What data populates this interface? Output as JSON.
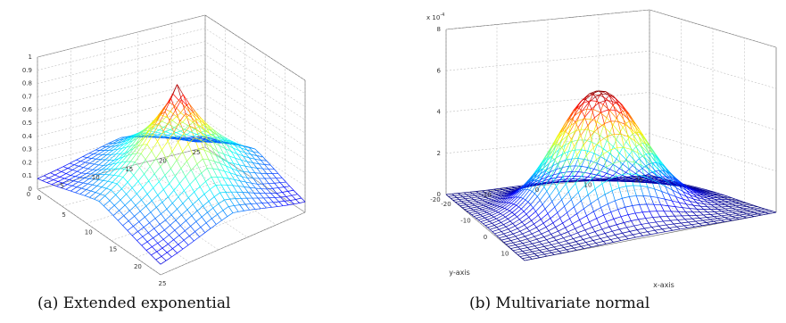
{
  "chart_data": [
    {
      "type": "surface",
      "caption": "(a) Extended exponential",
      "title": "",
      "xlabel": "",
      "ylabel": "",
      "zlabel": "",
      "x_range": [
        0,
        25
      ],
      "y_range": [
        0,
        25
      ],
      "zlim": [
        0,
        1
      ],
      "x_ticks": [
        0,
        5,
        10,
        15,
        20,
        25
      ],
      "y_ticks": [
        0,
        5,
        10,
        15,
        20,
        25
      ],
      "z_ticks": [
        0,
        0.1,
        0.2,
        0.3,
        0.4,
        0.5,
        0.6,
        0.7,
        0.8,
        0.9,
        1
      ],
      "x_tick_labels": [
        "0",
        "5",
        "10",
        "15",
        "20",
        "25"
      ],
      "y_tick_labels": [
        "0",
        "5",
        "10",
        "15",
        "20",
        "25"
      ],
      "z_tick_labels": [
        "0",
        "0.1",
        "0.2",
        "0.3",
        "0.4",
        "0.5",
        "0.6",
        "0.7",
        "0.8",
        "0.9",
        "1"
      ],
      "peak": {
        "x": 12.5,
        "y": 12.5,
        "z": 0.92
      },
      "grid": true,
      "colormap": "jet"
    },
    {
      "type": "surface",
      "caption": "(b) Multivariate normal",
      "title": "",
      "xlabel": "x-axis",
      "ylabel": "y-axis",
      "zlabel": "",
      "x_range": [
        -20,
        20
      ],
      "y_range": [
        -20,
        20
      ],
      "zlim": [
        0,
        8
      ],
      "z_multiplier": "x 10",
      "z_multiplier_exponent": "-4",
      "x_ticks": [
        -20,
        -10,
        0,
        10
      ],
      "y_ticks": [
        -20,
        -10,
        0,
        10,
        20
      ],
      "z_ticks": [
        0,
        2,
        4,
        6,
        8
      ],
      "x_tick_labels": [
        "-20",
        "-10",
        "0",
        "10"
      ],
      "y_tick_labels": [
        "-20",
        "-10",
        "0",
        "10",
        "20"
      ],
      "z_tick_labels": [
        "0",
        "2",
        "4",
        "6",
        "8"
      ],
      "peak": {
        "x": 0,
        "y": 0,
        "z": 5.8
      },
      "grid": true,
      "colormap": "jet"
    }
  ]
}
